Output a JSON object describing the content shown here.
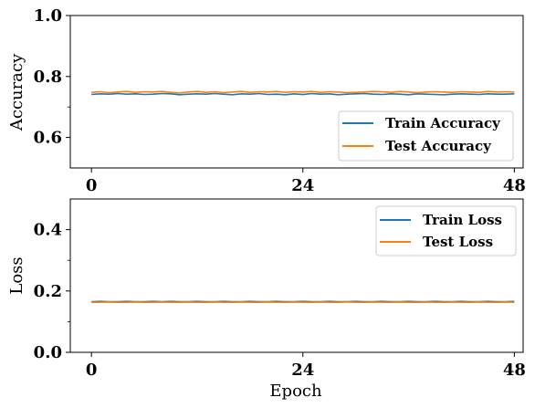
{
  "chart_data": [
    {
      "type": "line",
      "xlabel": "",
      "ylabel": "Accuracy",
      "xlim": [
        -2.4,
        49
      ],
      "ylim": [
        0.5,
        1.0
      ],
      "xticks": [
        0,
        24,
        48
      ],
      "xtick_labels": [
        "0",
        "24",
        "48"
      ],
      "yticks": [
        0.6,
        0.8,
        1.0
      ],
      "ytick_labels": [
        "0.6",
        "0.8",
        "1.0"
      ],
      "grid": false,
      "legend_position": "lower-right",
      "series": [
        {
          "name": "Train Accuracy",
          "color": "#1f77b4",
          "x": [
            0,
            1,
            2,
            3,
            4,
            5,
            6,
            7,
            8,
            9,
            10,
            11,
            12,
            13,
            14,
            15,
            16,
            17,
            18,
            19,
            20,
            21,
            22,
            23,
            24,
            25,
            26,
            27,
            28,
            29,
            30,
            31,
            32,
            33,
            34,
            35,
            36,
            37,
            38,
            39,
            40,
            41,
            42,
            43,
            44,
            45,
            46,
            47,
            48
          ],
          "values": [
            0.741,
            0.743,
            0.742,
            0.744,
            0.742,
            0.743,
            0.741,
            0.742,
            0.744,
            0.743,
            0.74,
            0.742,
            0.743,
            0.742,
            0.744,
            0.742,
            0.74,
            0.743,
            0.742,
            0.744,
            0.741,
            0.742,
            0.74,
            0.743,
            0.741,
            0.744,
            0.742,
            0.743,
            0.74,
            0.742,
            0.743,
            0.744,
            0.742,
            0.741,
            0.743,
            0.742,
            0.74,
            0.743,
            0.742,
            0.741,
            0.74,
            0.742,
            0.743,
            0.742,
            0.741,
            0.743,
            0.742,
            0.742,
            0.743
          ]
        },
        {
          "name": "Test Accuracy",
          "color": "#ff7f0e",
          "x": [
            0,
            1,
            2,
            3,
            4,
            5,
            6,
            7,
            8,
            9,
            10,
            11,
            12,
            13,
            14,
            15,
            16,
            17,
            18,
            19,
            20,
            21,
            22,
            23,
            24,
            25,
            26,
            27,
            28,
            29,
            30,
            31,
            32,
            33,
            34,
            35,
            36,
            37,
            38,
            39,
            40,
            41,
            42,
            43,
            44,
            45,
            46,
            47,
            48
          ],
          "values": [
            0.748,
            0.75,
            0.747,
            0.749,
            0.751,
            0.748,
            0.75,
            0.749,
            0.751,
            0.748,
            0.746,
            0.749,
            0.751,
            0.748,
            0.75,
            0.747,
            0.749,
            0.751,
            0.748,
            0.75,
            0.749,
            0.751,
            0.748,
            0.75,
            0.749,
            0.751,
            0.748,
            0.75,
            0.749,
            0.747,
            0.748,
            0.749,
            0.751,
            0.75,
            0.748,
            0.751,
            0.749,
            0.747,
            0.749,
            0.75,
            0.749,
            0.748,
            0.75,
            0.749,
            0.748,
            0.751,
            0.749,
            0.75,
            0.749
          ]
        }
      ]
    },
    {
      "type": "line",
      "xlabel": "Epoch",
      "ylabel": "Loss",
      "xlim": [
        -2.4,
        49
      ],
      "ylim": [
        0.0,
        0.5
      ],
      "xticks": [
        0,
        24,
        48
      ],
      "xtick_labels": [
        "0",
        "24",
        "48"
      ],
      "yticks": [
        0.0,
        0.2,
        0.4
      ],
      "ytick_labels": [
        "0.0",
        "0.2",
        "0.4"
      ],
      "grid": false,
      "legend_position": "upper-right",
      "series": [
        {
          "name": "Train Loss",
          "color": "#1f77b4",
          "x": [
            0,
            1,
            2,
            3,
            4,
            5,
            6,
            7,
            8,
            9,
            10,
            11,
            12,
            13,
            14,
            15,
            16,
            17,
            18,
            19,
            20,
            21,
            22,
            23,
            24,
            25,
            26,
            27,
            28,
            29,
            30,
            31,
            32,
            33,
            34,
            35,
            36,
            37,
            38,
            39,
            40,
            41,
            42,
            43,
            44,
            45,
            46,
            47,
            48
          ],
          "values": [
            0.165,
            0.166,
            0.165,
            0.165,
            0.166,
            0.165,
            0.165,
            0.166,
            0.165,
            0.166,
            0.165,
            0.165,
            0.166,
            0.165,
            0.165,
            0.166,
            0.165,
            0.165,
            0.166,
            0.165,
            0.165,
            0.166,
            0.165,
            0.165,
            0.166,
            0.165,
            0.165,
            0.166,
            0.165,
            0.165,
            0.166,
            0.165,
            0.165,
            0.166,
            0.165,
            0.165,
            0.166,
            0.165,
            0.165,
            0.166,
            0.165,
            0.165,
            0.166,
            0.165,
            0.165,
            0.166,
            0.165,
            0.165,
            0.166
          ]
        },
        {
          "name": "Test Loss",
          "color": "#ff7f0e",
          "x": [
            0,
            1,
            2,
            3,
            4,
            5,
            6,
            7,
            8,
            9,
            10,
            11,
            12,
            13,
            14,
            15,
            16,
            17,
            18,
            19,
            20,
            21,
            22,
            23,
            24,
            25,
            26,
            27,
            28,
            29,
            30,
            31,
            32,
            33,
            34,
            35,
            36,
            37,
            38,
            39,
            40,
            41,
            42,
            43,
            44,
            45,
            46,
            47,
            48
          ],
          "values": [
            0.163,
            0.163,
            0.164,
            0.163,
            0.163,
            0.164,
            0.163,
            0.163,
            0.164,
            0.163,
            0.163,
            0.164,
            0.163,
            0.163,
            0.164,
            0.163,
            0.163,
            0.164,
            0.163,
            0.163,
            0.164,
            0.163,
            0.163,
            0.164,
            0.163,
            0.163,
            0.164,
            0.163,
            0.163,
            0.164,
            0.163,
            0.163,
            0.164,
            0.163,
            0.163,
            0.164,
            0.163,
            0.163,
            0.164,
            0.163,
            0.163,
            0.164,
            0.163,
            0.163,
            0.164,
            0.163,
            0.163,
            0.164,
            0.163
          ]
        }
      ]
    }
  ]
}
